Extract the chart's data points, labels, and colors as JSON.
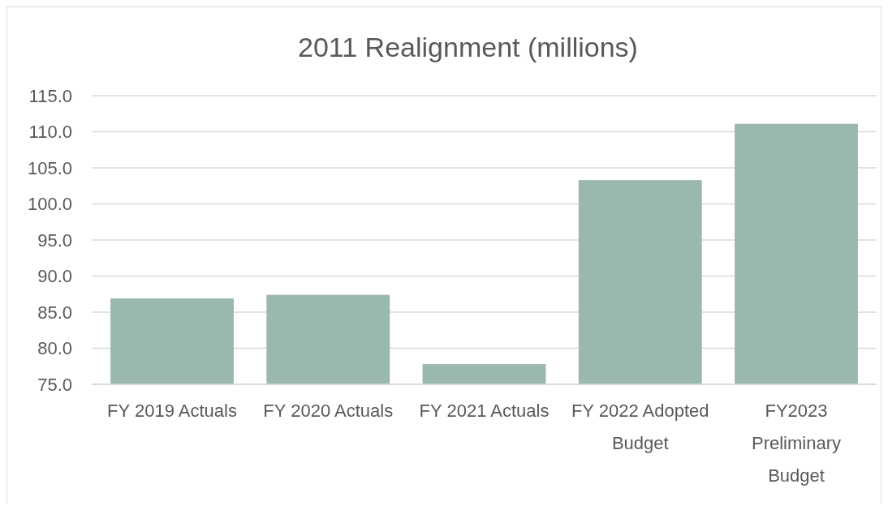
{
  "chart_data": {
    "type": "bar",
    "title": "2011 Realignment (millions)",
    "categories": [
      "FY 2019 Actuals",
      "FY 2020 Actuals",
      "FY 2021 Actuals",
      "FY 2022 Adopted Budget",
      "FY2023 Preliminary Budget"
    ],
    "values": [
      86.9,
      87.4,
      77.8,
      103.3,
      111.1
    ],
    "color": "#9bb8b0",
    "ylim": [
      75,
      115
    ],
    "yticks": [
      {
        "value": 75,
        "label": "75.0"
      },
      {
        "value": 80,
        "label": "80.0"
      },
      {
        "value": 85,
        "label": "85.0"
      },
      {
        "value": 90,
        "label": "90.0"
      },
      {
        "value": 95,
        "label": "95.0"
      },
      {
        "value": 100,
        "label": "100.0"
      },
      {
        "value": 105,
        "label": "105.0"
      },
      {
        "value": 110,
        "label": "110.0"
      },
      {
        "value": 115,
        "label": "115.0"
      }
    ],
    "grid": "y"
  }
}
